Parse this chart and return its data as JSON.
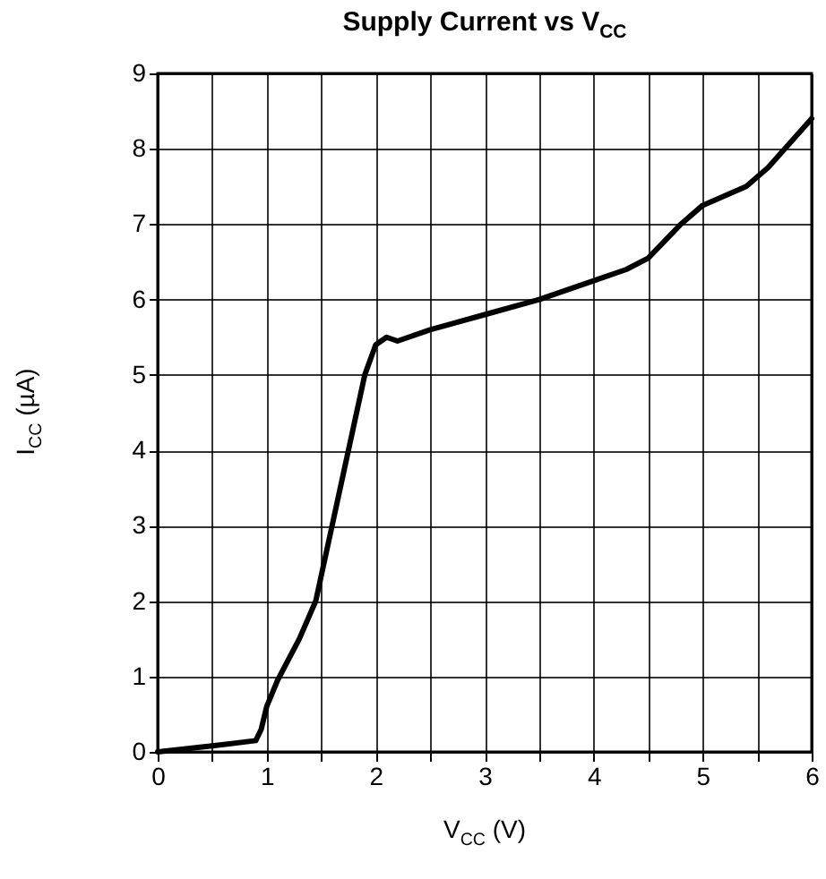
{
  "chart_data": {
    "type": "line",
    "title": "Supply Current vs V$_{CC}$",
    "xlabel": "V$_{CC}$ (V)",
    "ylabel": "I$_{CC}$ (µA)",
    "x": [
      0,
      0.5,
      0.9,
      0.95,
      1,
      1.1,
      1.3,
      1.45,
      1.6,
      1.75,
      1.9,
      2,
      2.1,
      2.2,
      2.5,
      3,
      3.5,
      4,
      4.3,
      4.5,
      4.8,
      5,
      5.4,
      5.6,
      6
    ],
    "series": [
      {
        "color": "#000000",
        "values": [
          0,
          0.08,
          0.15,
          0.3,
          0.6,
          0.95,
          1.5,
          2,
          3,
          4,
          5,
          5.4,
          5.5,
          5.45,
          5.6,
          5.8,
          6,
          6.25,
          6.4,
          6.55,
          7,
          7.25,
          7.5,
          7.75,
          8.4
        ]
      }
    ],
    "xlim": [
      0,
      6
    ],
    "xticks": [
      0,
      {
        "value": 0.5,
        "label": null
      },
      1,
      {
        "value": 1.5,
        "label": null
      },
      2,
      {
        "value": 2.5,
        "label": null
      },
      3,
      {
        "value": 3.5,
        "label": null
      },
      4,
      {
        "value": 4.5,
        "label": null
      },
      5,
      {
        "value": 5.5,
        "label": null
      },
      6
    ],
    "ylim": [
      0,
      9
    ],
    "yticks": [
      0,
      1,
      2,
      3,
      4,
      5,
      6,
      7,
      8,
      9
    ],
    "grid": true,
    "marker": "none",
    "line_style": "solid"
  }
}
